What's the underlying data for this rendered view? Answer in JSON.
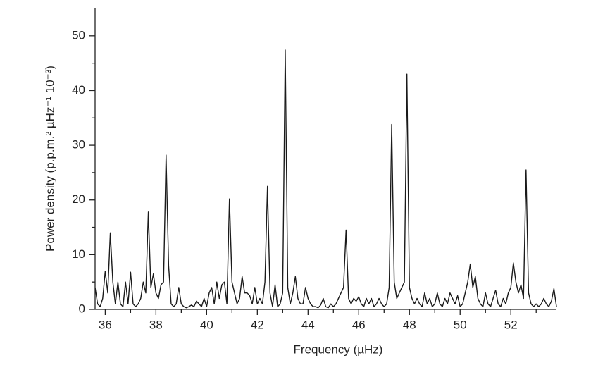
{
  "chart_data": {
    "type": "line",
    "x_label": "Frequency (µHz)",
    "y_label": "Power density (p.p.m.² µHz⁻¹ 10⁻³)",
    "color": "#1a1a1a",
    "x": [
      35.6,
      35.7,
      35.8,
      35.9,
      36,
      36.1,
      36.2,
      36.3,
      36.4,
      36.5,
      36.6,
      36.7,
      36.8,
      36.9,
      37,
      37.1,
      37.2,
      37.3,
      37.4,
      37.5,
      37.6,
      37.7,
      37.8,
      37.9,
      38,
      38.1,
      38.2,
      38.3,
      38.4,
      38.5,
      38.6,
      38.7,
      38.8,
      38.9,
      39,
      39.1,
      39.2,
      39.3,
      39.4,
      39.5,
      39.6,
      39.7,
      39.8,
      39.9,
      40,
      40.1,
      40.2,
      40.3,
      40.4,
      40.5,
      40.6,
      40.7,
      40.8,
      40.9,
      41,
      41.1,
      41.2,
      41.3,
      41.4,
      41.5,
      41.6,
      41.7,
      41.8,
      41.9,
      42,
      42.1,
      42.2,
      42.3,
      42.4,
      42.5,
      42.6,
      42.7,
      42.8,
      42.9,
      43,
      43.1,
      43.2,
      43.3,
      43.4,
      43.5,
      43.6,
      43.7,
      43.8,
      43.9,
      44,
      44.1,
      44.2,
      44.3,
      44.4,
      44.5,
      44.6,
      44.7,
      44.8,
      44.9,
      45,
      45.1,
      45.2,
      45.3,
      45.4,
      45.5,
      45.6,
      45.7,
      45.8,
      45.9,
      46,
      46.1,
      46.2,
      46.3,
      46.4,
      46.5,
      46.6,
      46.7,
      46.8,
      46.9,
      47,
      47.1,
      47.2,
      47.3,
      47.4,
      47.5,
      47.6,
      47.7,
      47.8,
      47.9,
      48,
      48.1,
      48.2,
      48.3,
      48.4,
      48.5,
      48.6,
      48.7,
      48.8,
      48.9,
      49,
      49.1,
      49.2,
      49.3,
      49.4,
      49.5,
      49.6,
      49.7,
      49.8,
      49.9,
      50,
      50.1,
      50.2,
      50.3,
      50.4,
      50.5,
      50.6,
      50.7,
      50.8,
      50.9,
      51,
      51.1,
      51.2,
      51.3,
      51.4,
      51.5,
      51.6,
      51.7,
      51.8,
      51.9,
      52,
      52.1,
      52.2,
      52.3,
      52.4,
      52.5,
      52.6,
      52.7,
      52.8,
      52.9,
      53,
      53.1,
      53.2,
      53.3,
      53.4,
      53.5,
      53.6,
      53.7,
      53.8
    ],
    "values": [
      4,
      1,
      0.5,
      2,
      7,
      3,
      14,
      5,
      1,
      5,
      1,
      0.5,
      5,
      1,
      6.8,
      1,
      0.5,
      1,
      2,
      5,
      3,
      17.8,
      4,
      6.5,
      3,
      2,
      4.5,
      5,
      28.2,
      8,
      1,
      0.5,
      1,
      4,
      1,
      0.5,
      0.3,
      0.5,
      0.8,
      0.5,
      1.5,
      1,
      0.5,
      2,
      0.5,
      3,
      4,
      1,
      5,
      2,
      4.5,
      5,
      1,
      20.2,
      5,
      3,
      1,
      2,
      6,
      3,
      3,
      2.5,
      1,
      4,
      1,
      2,
      1,
      5,
      22.5,
      3,
      0.5,
      4.5,
      0.5,
      1,
      3,
      47.4,
      4,
      1,
      3,
      6,
      2,
      1,
      1,
      4,
      2,
      1,
      0.5,
      0.5,
      0.3,
      0.8,
      2,
      0.5,
      0.3,
      1,
      0.5,
      1,
      2,
      3,
      4,
      14.5,
      2,
      1,
      2,
      1.5,
      2.3,
      1,
      0.5,
      2,
      1,
      2,
      0.5,
      1,
      2,
      1,
      0.5,
      1,
      4,
      33.8,
      5,
      2,
      3,
      4,
      5,
      43,
      4,
      2,
      1,
      2,
      1,
      0.5,
      3,
      1,
      2,
      0.5,
      1,
      3,
      1,
      0.5,
      2,
      1,
      3,
      2,
      1,
      2.5,
      0.5,
      1,
      3,
      5,
      8.3,
      4,
      6,
      2,
      1,
      0.5,
      3,
      1,
      0.5,
      2,
      3.5,
      1,
      0.5,
      2,
      1,
      3,
      4,
      8.5,
      5,
      3,
      4.5,
      2,
      25.5,
      3,
      1,
      0.5,
      1,
      0.5,
      1,
      2,
      1,
      0.5,
      1.5,
      3.8,
      0.5
    ],
    "xlim": [
      35.6,
      53.8
    ],
    "ylim": [
      0,
      55
    ],
    "xticks": [
      36,
      38,
      40,
      42,
      44,
      46,
      48,
      50,
      52
    ],
    "x_minor_ticks": [
      37,
      39,
      41,
      43,
      45,
      47,
      49,
      51,
      53
    ],
    "yticks": [
      0,
      10,
      20,
      30,
      40,
      50
    ],
    "y_minor_ticks": [
      5,
      15,
      25,
      35,
      45
    ]
  }
}
